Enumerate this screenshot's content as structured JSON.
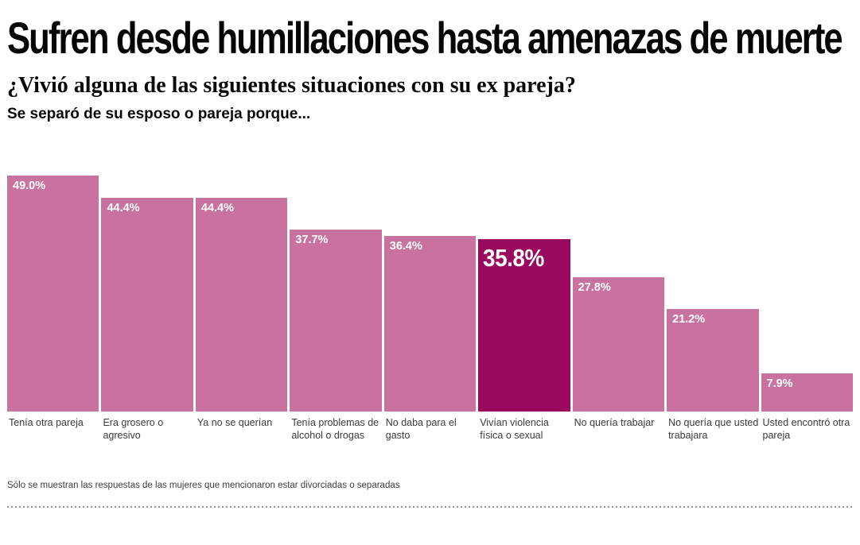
{
  "header": {
    "title": "Sufren desde humillaciones hasta amenazas de muerte",
    "subtitle": "¿Vivió alguna de las siguientes situaciones con su ex pareja?",
    "question_intro": "Se separó de su esposo o pareja porque..."
  },
  "chart_data": {
    "type": "bar",
    "title": "Sufren desde humillaciones hasta amenazas de muerte",
    "subtitle": "¿Vivió alguna de las siguientes situaciones con su ex pareja?",
    "xlabel": "",
    "ylabel": "",
    "ylim": [
      0,
      49
    ],
    "grid": false,
    "legend": false,
    "orientation": "vertical",
    "categories": [
      "Tenía otra pareja",
      "Era grosero o agresivo",
      "Ya no se querían",
      "Tenía problemas de alcohol o drogas",
      "No daba para el gasto",
      "Vivían violencia física o sexual",
      "No quería trabajar",
      "No quería que usted trabajara",
      "Usted encontró otra pareja"
    ],
    "values": [
      49.0,
      44.4,
      44.4,
      37.7,
      36.4,
      35.8,
      27.8,
      21.2,
      7.9
    ],
    "value_labels": [
      "49.0%",
      "44.4%",
      "44.4%",
      "37.7%",
      "36.4%",
      "35.8%",
      "27.8%",
      "21.2%",
      "7.9%"
    ],
    "highlight_index": 5,
    "bar_color": "#C9719F",
    "highlight_color": "#9A095E",
    "value_label_color": "#FFFFFF"
  },
  "footnote": "Sólo se muestran las respuestas de las mujeres que mencionaron estar divorciadas o separadas"
}
